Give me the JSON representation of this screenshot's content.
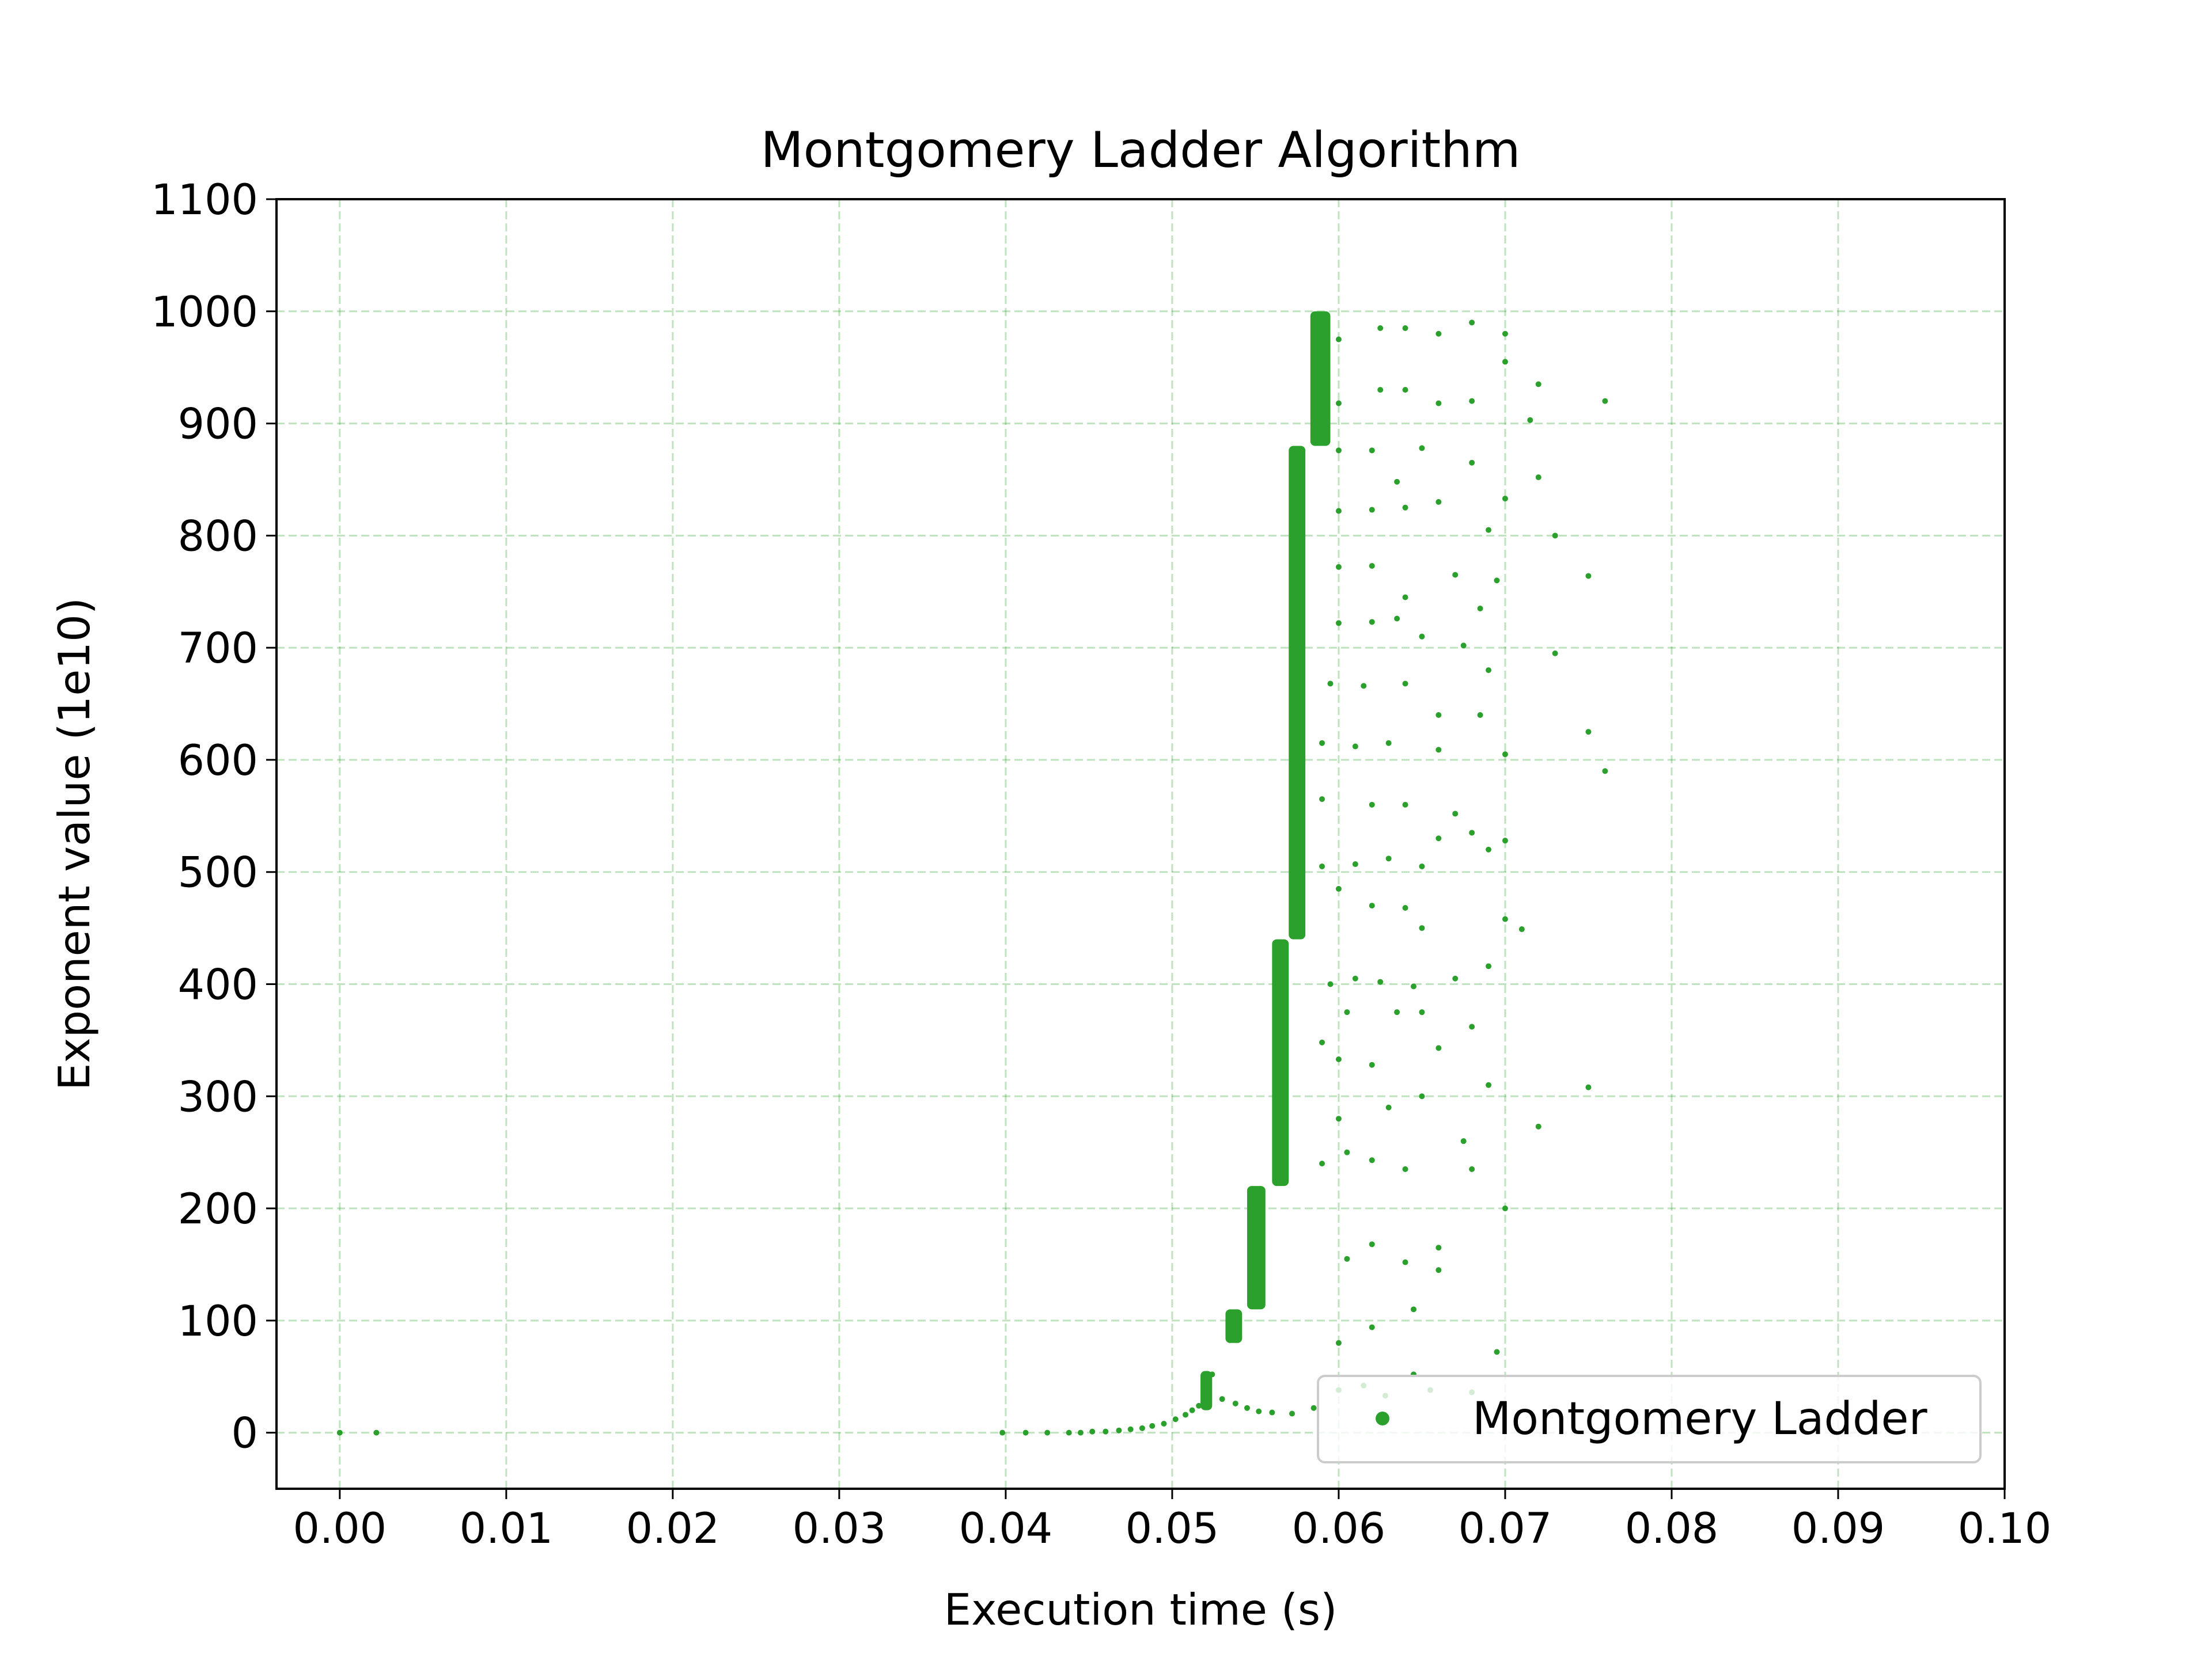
{
  "chart_data": {
    "type": "scatter",
    "title": "Montgomery Ladder Algorithm",
    "xlabel": "Execution time (s)",
    "ylabel": "Exponent value (1e10)",
    "xlim": [
      -0.0038,
      0.1
    ],
    "ylim": [
      -50,
      1100
    ],
    "xticks": [
      "0.00",
      "0.01",
      "0.02",
      "0.03",
      "0.04",
      "0.05",
      "0.06",
      "0.07",
      "0.08",
      "0.09",
      "0.10"
    ],
    "yticks": [
      "0",
      "100",
      "200",
      "300",
      "400",
      "500",
      "600",
      "700",
      "800",
      "900",
      "1000",
      "1100"
    ],
    "grid": true,
    "legend_position": "lower-right",
    "color": "#2ca02c",
    "series": [
      {
        "name": "Montgomery Ladder",
        "points": [
          [
            0.0,
            0
          ],
          [
            0.0022,
            0
          ],
          [
            0.0398,
            0
          ],
          [
            0.0412,
            0
          ],
          [
            0.0425,
            0
          ],
          [
            0.0438,
            0
          ],
          [
            0.0445,
            0
          ],
          [
            0.0452,
            1
          ],
          [
            0.046,
            1
          ],
          [
            0.0468,
            2
          ],
          [
            0.0475,
            3
          ],
          [
            0.0482,
            4
          ],
          [
            0.0488,
            6
          ],
          [
            0.0495,
            8
          ],
          [
            0.0502,
            12
          ],
          [
            0.0508,
            16
          ],
          [
            0.0512,
            20
          ],
          [
            0.0516,
            24
          ],
          [
            0.052,
            35
          ],
          [
            0.0522,
            45
          ],
          [
            0.0524,
            52
          ],
          [
            0.0519,
            28
          ],
          [
            0.053,
            30
          ],
          [
            0.0538,
            26
          ],
          [
            0.0545,
            22
          ],
          [
            0.0552,
            19
          ],
          [
            0.056,
            18
          ],
          [
            0.0572,
            17
          ],
          [
            0.0585,
            22
          ],
          [
            0.06,
            38
          ],
          [
            0.0615,
            42
          ],
          [
            0.0628,
            33
          ],
          [
            0.0645,
            52
          ],
          [
            0.0655,
            38
          ],
          [
            0.068,
            36
          ],
          [
            0.06,
            80
          ],
          [
            0.062,
            94
          ],
          [
            0.0605,
            155
          ],
          [
            0.062,
            168
          ],
          [
            0.064,
            152
          ],
          [
            0.0645,
            110
          ],
          [
            0.066,
            145
          ],
          [
            0.066,
            165
          ],
          [
            0.07,
            200
          ],
          [
            0.0695,
            72
          ],
          [
            0.059,
            240
          ],
          [
            0.0605,
            250
          ],
          [
            0.062,
            243
          ],
          [
            0.064,
            235
          ],
          [
            0.06,
            280
          ],
          [
            0.063,
            290
          ],
          [
            0.065,
            300
          ],
          [
            0.0675,
            260
          ],
          [
            0.068,
            235
          ],
          [
            0.072,
            273
          ],
          [
            0.075,
            308
          ],
          [
            0.059,
            348
          ],
          [
            0.06,
            333
          ],
          [
            0.062,
            328
          ],
          [
            0.0605,
            375
          ],
          [
            0.0635,
            375
          ],
          [
            0.065,
            375
          ],
          [
            0.066,
            343
          ],
          [
            0.068,
            362
          ],
          [
            0.069,
            310
          ],
          [
            0.0595,
            400
          ],
          [
            0.061,
            405
          ],
          [
            0.0625,
            402
          ],
          [
            0.0645,
            398
          ],
          [
            0.067,
            405
          ],
          [
            0.069,
            416
          ],
          [
            0.07,
            458
          ],
          [
            0.071,
            449
          ],
          [
            0.06,
            485
          ],
          [
            0.062,
            470
          ],
          [
            0.064,
            468
          ],
          [
            0.065,
            450
          ],
          [
            0.059,
            505
          ],
          [
            0.061,
            507
          ],
          [
            0.063,
            512
          ],
          [
            0.065,
            505
          ],
          [
            0.068,
            535
          ],
          [
            0.069,
            520
          ],
          [
            0.07,
            528
          ],
          [
            0.059,
            565
          ],
          [
            0.062,
            560
          ],
          [
            0.064,
            560
          ],
          [
            0.066,
            530
          ],
          [
            0.067,
            552
          ],
          [
            0.059,
            615
          ],
          [
            0.061,
            612
          ],
          [
            0.063,
            615
          ],
          [
            0.066,
            609
          ],
          [
            0.0685,
            640
          ],
          [
            0.07,
            605
          ],
          [
            0.075,
            625
          ],
          [
            0.076,
            590
          ],
          [
            0.0595,
            668
          ],
          [
            0.0615,
            666
          ],
          [
            0.064,
            668
          ],
          [
            0.066,
            640
          ],
          [
            0.069,
            680
          ],
          [
            0.06,
            722
          ],
          [
            0.062,
            723
          ],
          [
            0.0635,
            726
          ],
          [
            0.065,
            710
          ],
          [
            0.0675,
            702
          ],
          [
            0.0685,
            735
          ],
          [
            0.073,
            695
          ],
          [
            0.06,
            772
          ],
          [
            0.062,
            773
          ],
          [
            0.064,
            745
          ],
          [
            0.067,
            765
          ],
          [
            0.0695,
            760
          ],
          [
            0.075,
            764
          ],
          [
            0.06,
            822
          ],
          [
            0.062,
            823
          ],
          [
            0.064,
            825
          ],
          [
            0.066,
            830
          ],
          [
            0.069,
            805
          ],
          [
            0.07,
            833
          ],
          [
            0.073,
            800
          ],
          [
            0.06,
            876
          ],
          [
            0.062,
            876
          ],
          [
            0.0635,
            848
          ],
          [
            0.065,
            878
          ],
          [
            0.068,
            865
          ],
          [
            0.072,
            852
          ],
          [
            0.06,
            918
          ],
          [
            0.0625,
            930
          ],
          [
            0.064,
            930
          ],
          [
            0.066,
            918
          ],
          [
            0.068,
            920
          ],
          [
            0.0715,
            903
          ],
          [
            0.07,
            955
          ],
          [
            0.072,
            935
          ],
          [
            0.076,
            920
          ],
          [
            0.06,
            975
          ],
          [
            0.0625,
            985
          ],
          [
            0.064,
            985
          ],
          [
            0.066,
            980
          ],
          [
            0.068,
            990
          ],
          [
            0.07,
            980
          ]
        ]
      }
    ]
  }
}
